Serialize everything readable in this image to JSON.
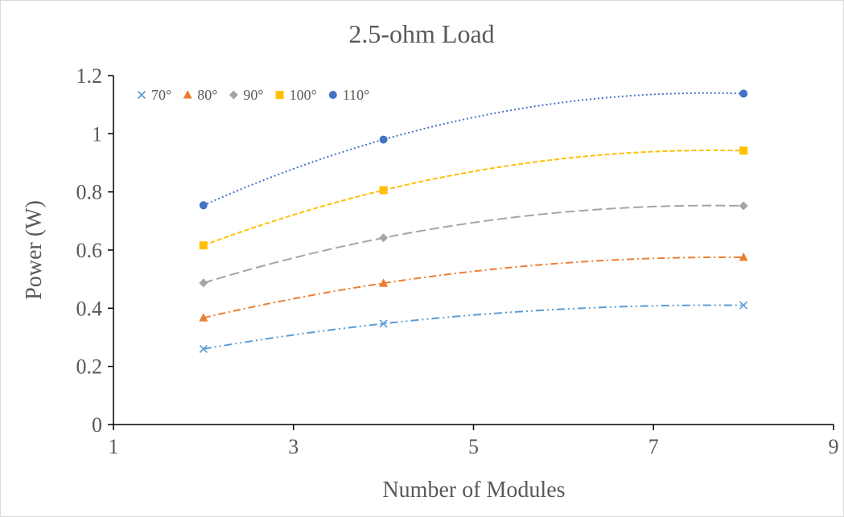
{
  "chart_data": {
    "type": "scatter",
    "title": "2.5-ohm Load",
    "xlabel": "Number of Modules",
    "ylabel": "Power (W)",
    "xlim": [
      1,
      9
    ],
    "ylim": [
      0,
      1.2
    ],
    "x_ticks": [
      "1",
      "3",
      "5",
      "7",
      "9"
    ],
    "y_ticks": [
      "0",
      "0.2",
      "0.4",
      "0.6",
      "0.8",
      "1",
      "1.2"
    ],
    "grid": false,
    "legend_position": "top-left",
    "trendline": "polynomial",
    "series": [
      {
        "name": "70°",
        "marker": "x",
        "color": "#5b9bd5",
        "dash": "dashdotdot",
        "x": [
          2,
          4,
          8
        ],
        "y": [
          0.26,
          0.347,
          0.41
        ]
      },
      {
        "name": "80°",
        "marker": "triangle",
        "color": "#ed7d31",
        "dash": "dashdot",
        "x": [
          2,
          4,
          8
        ],
        "y": [
          0.367,
          0.486,
          0.575
        ]
      },
      {
        "name": "90°",
        "marker": "diamond",
        "color": "#a5a5a5",
        "dash": "longdash",
        "x": [
          2,
          4,
          8
        ],
        "y": [
          0.487,
          0.642,
          0.752
        ]
      },
      {
        "name": "100°",
        "marker": "square",
        "color": "#ffc000",
        "dash": "dash",
        "x": [
          2,
          4,
          8
        ],
        "y": [
          0.616,
          0.806,
          0.942
        ]
      },
      {
        "name": "110°",
        "marker": "circle",
        "color": "#4472c4",
        "dash": "dot",
        "x": [
          2,
          4,
          8
        ],
        "y": [
          0.754,
          0.98,
          1.138
        ]
      }
    ]
  }
}
